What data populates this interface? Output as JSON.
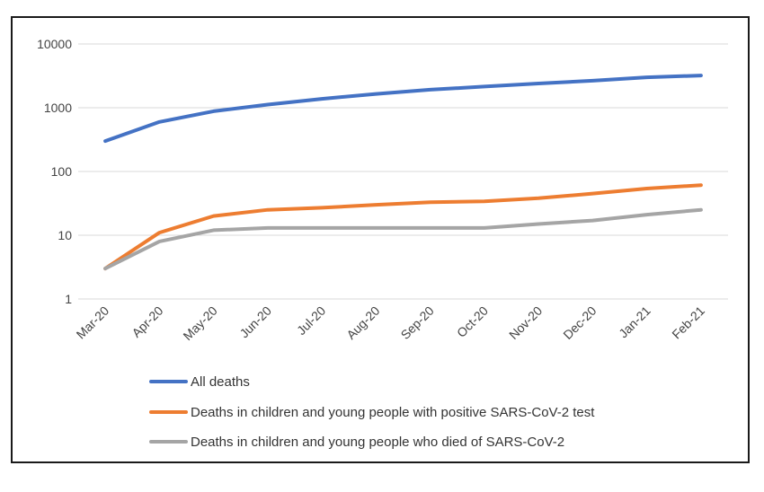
{
  "chart_data": {
    "type": "line",
    "title": "",
    "xlabel": "",
    "ylabel": "",
    "y_scale": "log",
    "ylim": [
      1,
      10000
    ],
    "y_ticks": [
      {
        "value": 1,
        "label": "1"
      },
      {
        "value": 10,
        "label": "10"
      },
      {
        "value": 100,
        "label": "100"
      },
      {
        "value": 1000,
        "label": "1000"
      },
      {
        "value": 10000,
        "label": "10000"
      }
    ],
    "categories": [
      "Mar-20",
      "Apr-20",
      "May-20",
      "Jun-20",
      "Jul-20",
      "Aug-20",
      "Sep-20",
      "Oct-20",
      "Nov-20",
      "Dec-20",
      "Jan-21",
      "Feb-21"
    ],
    "grid": true,
    "legend_position": "bottom",
    "series": [
      {
        "name": "All deaths",
        "color": "#4472C4",
        "values": [
          300,
          600,
          880,
          1120,
          1380,
          1650,
          1920,
          2150,
          2400,
          2650,
          3000,
          3200
        ]
      },
      {
        "name": "Deaths in children and young people with positive SARS-CoV-2 test",
        "color": "#ED7D31",
        "values": [
          3,
          11,
          20,
          25,
          27,
          30,
          33,
          34,
          38,
          45,
          54,
          61
        ]
      },
      {
        "name": "Deaths in children and young people who died of SARS-CoV-2",
        "color": "#A5A5A5",
        "values": [
          3,
          8,
          12,
          13,
          13,
          13,
          13,
          13,
          15,
          17,
          21,
          25
        ]
      }
    ]
  }
}
